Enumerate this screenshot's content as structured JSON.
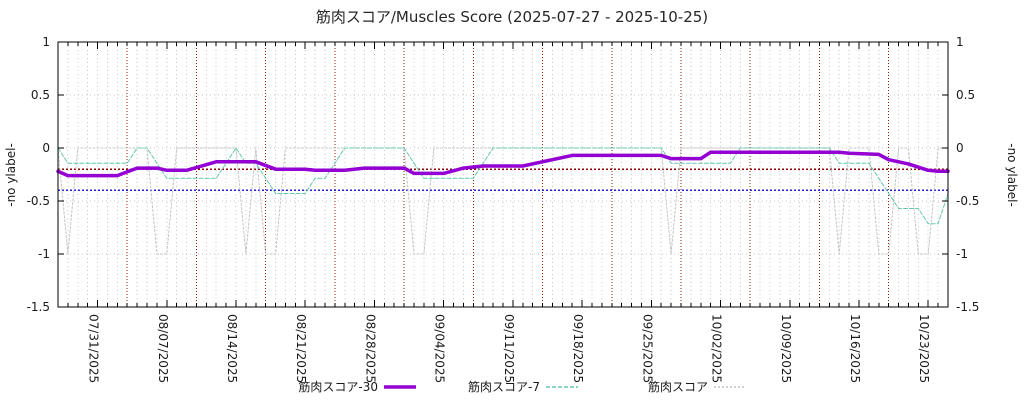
{
  "title": "筋肉スコア/Muscles Score (2025-07-27 - 2025-10-25)",
  "x_axis": {
    "start": "2025-07-27",
    "end": "2025-10-25",
    "tick_labels": [
      "07/31/2025",
      "08/07/2025",
      "08/14/2025",
      "08/21/2025",
      "08/28/2025",
      "09/04/2025",
      "09/11/2025",
      "09/18/2025",
      "09/25/2025",
      "10/02/2025",
      "10/09/2025",
      "10/16/2025",
      "10/23/2025"
    ],
    "weekly_gridline_weekday": "Sunday"
  },
  "y_axis": {
    "label_left": "-no ylabel-",
    "label_right": "-no ylabel-",
    "ticks": [
      "1",
      "0.5",
      "0",
      "-0.5",
      "-1",
      "-1.5"
    ],
    "range": [
      -1.5,
      1
    ]
  },
  "reference_lines": [
    {
      "value": -0.2,
      "color": "#8b0000",
      "style": "dotted"
    },
    {
      "value": -0.4,
      "color": "#2222cc",
      "style": "dotted"
    }
  ],
  "colors": {
    "background": "#ffffff",
    "border": "#000000",
    "grid_minor": "#c9c9c9",
    "grid_weekly": "#8b2500",
    "text": "#1a1a1a"
  },
  "chart_data": {
    "type": "line",
    "title": "筋肉スコア/Muscles Score (2025-07-27 - 2025-10-25)",
    "xlabel": "",
    "ylabel": "-no ylabel-",
    "ylim": [
      -1.5,
      1
    ],
    "xlim": [
      "2025-07-27",
      "2025-10-25"
    ],
    "grid": true,
    "legend_position": "bottom",
    "series": [
      {
        "name": "筋肉スコア-30",
        "color": "#9400d3",
        "width": 3.5,
        "dash": "",
        "points": [
          [
            "07/27",
            -0.22
          ],
          [
            "07/28",
            -0.26
          ],
          [
            "08/02",
            -0.26
          ],
          [
            "08/04",
            -0.19
          ],
          [
            "08/06",
            -0.19
          ],
          [
            "08/07",
            -0.21
          ],
          [
            "08/09",
            -0.21
          ],
          [
            "08/12",
            -0.13
          ],
          [
            "08/16",
            -0.13
          ],
          [
            "08/18",
            -0.2
          ],
          [
            "08/21",
            -0.2
          ],
          [
            "08/22",
            -0.21
          ],
          [
            "08/25",
            -0.21
          ],
          [
            "08/27",
            -0.19
          ],
          [
            "08/31",
            -0.19
          ],
          [
            "09/01",
            -0.24
          ],
          [
            "09/04",
            -0.24
          ],
          [
            "09/06",
            -0.19
          ],
          [
            "09/08",
            -0.17
          ],
          [
            "09/12",
            -0.17
          ],
          [
            "09/17",
            -0.07
          ],
          [
            "09/26",
            -0.07
          ],
          [
            "09/27",
            -0.1
          ],
          [
            "09/30",
            -0.1
          ],
          [
            "10/01",
            -0.04
          ],
          [
            "10/14",
            -0.04
          ],
          [
            "10/15",
            -0.05
          ],
          [
            "10/18",
            -0.06
          ],
          [
            "10/19",
            -0.11
          ],
          [
            "10/21",
            -0.15
          ],
          [
            "10/23",
            -0.21
          ],
          [
            "10/24",
            -0.22
          ],
          [
            "10/25",
            -0.22
          ]
        ]
      },
      {
        "name": "筋肉スコア-7",
        "color": "#63c8ae",
        "width": 1,
        "dash": "4,2",
        "points": [
          [
            "07/27",
            0
          ],
          [
            "07/28",
            -0.143
          ],
          [
            "08/03",
            -0.143
          ],
          [
            "08/04",
            0
          ],
          [
            "08/05",
            0
          ],
          [
            "08/06",
            -0.143
          ],
          [
            "08/07",
            -0.286
          ],
          [
            "08/12",
            -0.286
          ],
          [
            "08/13",
            -0.143
          ],
          [
            "08/14",
            0
          ],
          [
            "08/15",
            -0.143
          ],
          [
            "08/16",
            -0.143
          ],
          [
            "08/17",
            -0.286
          ],
          [
            "08/18",
            -0.429
          ],
          [
            "08/21",
            -0.429
          ],
          [
            "08/22",
            -0.286
          ],
          [
            "08/23",
            -0.286
          ],
          [
            "08/24",
            -0.143
          ],
          [
            "08/25",
            0
          ],
          [
            "08/31",
            0
          ],
          [
            "09/01",
            -0.143
          ],
          [
            "09/02",
            -0.286
          ],
          [
            "09/07",
            -0.286
          ],
          [
            "09/08",
            -0.143
          ],
          [
            "09/09",
            0
          ],
          [
            "09/26",
            0
          ],
          [
            "09/27",
            -0.143
          ],
          [
            "10/03",
            -0.143
          ],
          [
            "10/04",
            0
          ],
          [
            "10/13",
            0
          ],
          [
            "10/14",
            -0.143
          ],
          [
            "10/17",
            -0.143
          ],
          [
            "10/18",
            -0.286
          ],
          [
            "10/19",
            -0.429
          ],
          [
            "10/20",
            -0.571
          ],
          [
            "10/22",
            -0.571
          ],
          [
            "10/23",
            -0.714
          ],
          [
            "10/24",
            -0.714
          ],
          [
            "10/25",
            -0.429
          ]
        ]
      },
      {
        "name": "筋肉スコア",
        "color": "#c4c4c4",
        "width": 1,
        "dash": "2,2",
        "points": [
          [
            "07/27",
            0
          ],
          [
            "07/28",
            -1
          ],
          [
            "07/29",
            0
          ],
          [
            "08/05",
            0
          ],
          [
            "08/06",
            -1
          ],
          [
            "08/07",
            -1
          ],
          [
            "08/08",
            0
          ],
          [
            "08/14",
            0
          ],
          [
            "08/15",
            -1
          ],
          [
            "08/16",
            0
          ],
          [
            "08/17",
            -1
          ],
          [
            "08/18",
            -1
          ],
          [
            "08/19",
            0
          ],
          [
            "08/31",
            0
          ],
          [
            "09/01",
            -1
          ],
          [
            "09/02",
            -1
          ],
          [
            "09/03",
            0
          ],
          [
            "09/26",
            0
          ],
          [
            "09/27",
            -1
          ],
          [
            "09/28",
            0
          ],
          [
            "10/13",
            0
          ],
          [
            "10/14",
            -1
          ],
          [
            "10/15",
            0
          ],
          [
            "10/17",
            0
          ],
          [
            "10/18",
            -1
          ],
          [
            "10/19",
            -1
          ],
          [
            "10/20",
            0
          ],
          [
            "10/21",
            0
          ],
          [
            "10/22",
            -1
          ],
          [
            "10/23",
            -1
          ],
          [
            "10/24",
            0
          ],
          [
            "10/25",
            0
          ]
        ]
      }
    ]
  }
}
